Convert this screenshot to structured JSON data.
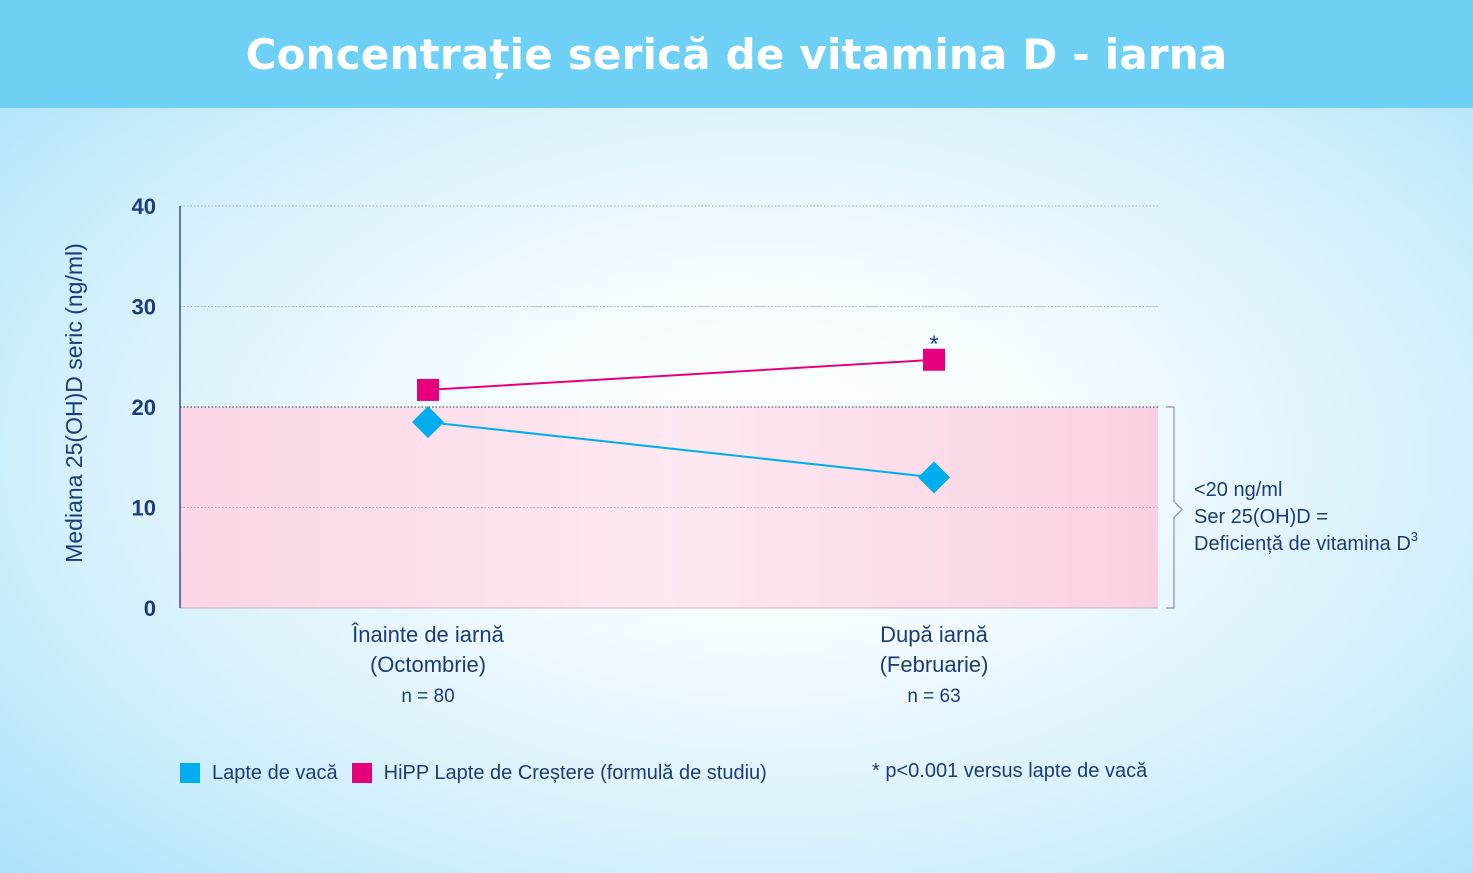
{
  "chart_data": {
    "type": "line",
    "title": "Concentrație serică de vitamina D - iarna",
    "ylabel": "Mediana 25(OH)D seric (ng/ml)",
    "ylim": [
      0,
      40
    ],
    "yticks": [
      "0",
      "10",
      "20",
      "30",
      "40"
    ],
    "grid": true,
    "categories": [
      {
        "line1": "Înainte de iarnă",
        "line2": "(Octombrie)",
        "n": "n = 80"
      },
      {
        "line1": "După iarnă",
        "line2": "(Februarie)",
        "n": "n = 63"
      }
    ],
    "series": [
      {
        "name": "Lapte de vacă",
        "marker": "diamond",
        "color": "#00aeef",
        "values": [
          18.5,
          13.0
        ]
      },
      {
        "name": "HiPP Lapte de Creștere (formulă de studiu)",
        "marker": "square",
        "color": "#e6007e",
        "values": [
          21.7,
          24.7
        ]
      }
    ],
    "significance_marker": "*",
    "shaded_region": {
      "range": [
        0,
        20
      ],
      "color": "#f9d3e4",
      "label_lines": [
        "<20 ng/ml",
        "Ser 25(OH)D =",
        "Deficiență de vitamina D"
      ],
      "label_superscript": "3"
    },
    "footnote": "* p<0.001 versus lapte de vacă"
  }
}
